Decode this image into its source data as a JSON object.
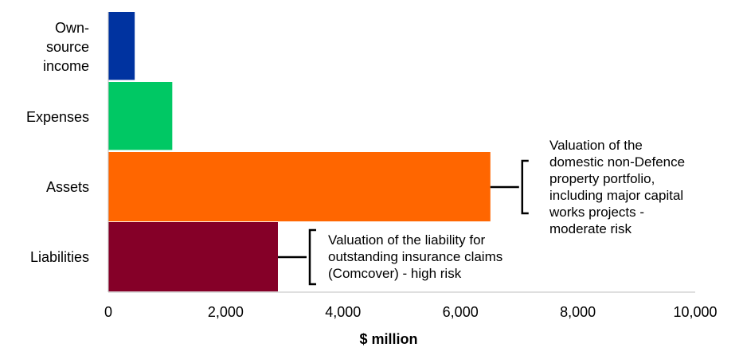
{
  "chart_data": {
    "type": "bar",
    "orientation": "horizontal",
    "categories": [
      "Own-\nsource\nincome",
      "Expenses",
      "Assets",
      "Liabilities"
    ],
    "values": [
      450,
      1090,
      6510,
      2890
    ],
    "colors": [
      "#0033A0",
      "#00C864",
      "#FF6600",
      "#850028"
    ],
    "xlabel": "$ million",
    "ylabel": "",
    "xlim": [
      0,
      10000
    ],
    "xticks": [
      0,
      2000,
      4000,
      6000,
      8000,
      10000
    ],
    "xtick_labels": [
      "0",
      "2,000",
      "4,000",
      "6,000",
      "8,000",
      "10,000"
    ],
    "grid": false,
    "annotations": [
      {
        "category": "Liabilities",
        "text": "Valuation of the liability for\noutstanding insurance claims\n(Comcover) - high risk"
      },
      {
        "category": "Assets",
        "text": "Valuation of the\ndomestic non-Defence\nproperty portfolio,\nincluding major capital\nworks projects -\nmoderate risk"
      }
    ]
  }
}
